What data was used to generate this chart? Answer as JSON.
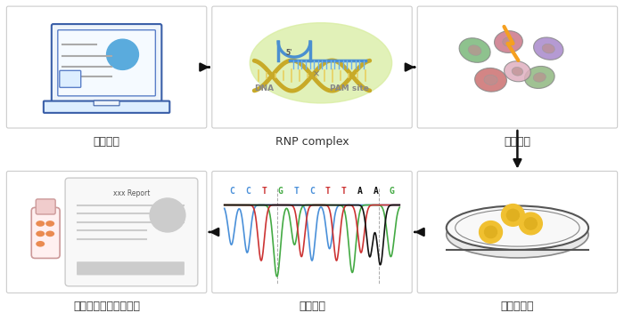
{
  "background_color": "#ffffff",
  "arrow_color": "#111111",
  "steps": [
    {
      "id": 1,
      "label": "设计方案",
      "row": 0,
      "col": 0
    },
    {
      "id": 2,
      "label": "RNP complex",
      "row": 0,
      "col": 1
    },
    {
      "id": 3,
      "label": "细胞转染",
      "row": 0,
      "col": 2
    },
    {
      "id": 4,
      "label": "单克隆形成",
      "row": 1,
      "col": 2
    },
    {
      "id": 5,
      "label": "测序验证",
      "row": 1,
      "col": 1
    },
    {
      "id": 6,
      "label": "质检冻存（提供报告）",
      "row": 1,
      "col": 0
    }
  ],
  "label_fontsize": 9,
  "label_color": "#333333",
  "seq_letters": [
    "C",
    "C",
    "T",
    "G",
    "T",
    "C",
    "T",
    "T",
    "A",
    "A",
    "G"
  ],
  "seq_colors": [
    "#4a90d9",
    "#4a90d9",
    "#cc3333",
    "#44aa44",
    "#4a90d9",
    "#4a90d9",
    "#cc3333",
    "#cc3333",
    "#111111",
    "#111111",
    "#44aa44"
  ]
}
